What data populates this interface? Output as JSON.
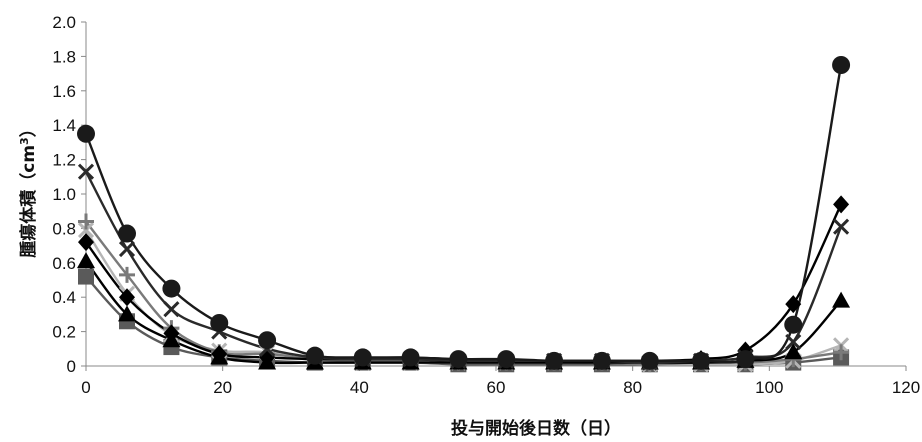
{
  "chart_data": {
    "type": "line",
    "title": "",
    "xlabel": "投与開始後日数（日）",
    "ylabel": "腫瘍体積（cm³）",
    "ylabel_parts": {
      "main": "腫瘍体積（cm",
      "sup": "3",
      "close": "）"
    },
    "xlim": [
      0,
      120
    ],
    "ylim": [
      0,
      2.0
    ],
    "x_ticks": [
      0,
      20,
      40,
      60,
      80,
      100,
      120
    ],
    "y_ticks": [
      0,
      0.2,
      0.4,
      0.6,
      0.8,
      1.0,
      1.2,
      1.4,
      1.6,
      1.8,
      2.0
    ],
    "y_tick_labels": [
      "0",
      "0.2",
      "0.4",
      "0.6",
      "0.8",
      "1.0",
      "1.2",
      "1.4",
      "1.6",
      "1.8",
      "2.0"
    ],
    "x_tick_labels": [
      "0",
      "20",
      "40",
      "60",
      "80",
      "100",
      "120"
    ],
    "grid": false,
    "legend": "none",
    "x": [
      0,
      6,
      12.5,
      19.5,
      26.5,
      33.5,
      40.5,
      47.5,
      54.5,
      61.5,
      68.5,
      75.5,
      82.5,
      90,
      96.5,
      103.5,
      110.5
    ],
    "series": [
      {
        "marker": "circle",
        "color": "#1a1a1a",
        "values": [
          1.35,
          0.77,
          0.45,
          0.25,
          0.15,
          0.06,
          0.05,
          0.05,
          0.04,
          0.04,
          0.03,
          0.03,
          0.03,
          0.03,
          0.04,
          0.24,
          1.75
        ]
      },
      {
        "marker": "x",
        "color": "#2a2a2a",
        "values": [
          1.13,
          0.68,
          0.33,
          0.2,
          0.1,
          0.05,
          0.04,
          0.04,
          0.03,
          0.03,
          0.03,
          0.03,
          0.02,
          0.03,
          0.05,
          0.14,
          0.81
        ]
      },
      {
        "marker": "plus",
        "color": "#7a7a7a",
        "values": [
          0.84,
          0.53,
          0.22,
          0.08,
          0.07,
          0.04,
          0.03,
          0.03,
          0.02,
          0.02,
          0.02,
          0.02,
          0.01,
          0.02,
          0.02,
          0.04,
          0.08
        ]
      },
      {
        "marker": "diamond",
        "color": "#000000",
        "values": [
          0.72,
          0.4,
          0.19,
          0.07,
          0.05,
          0.04,
          0.04,
          0.04,
          0.03,
          0.03,
          0.03,
          0.03,
          0.03,
          0.04,
          0.09,
          0.36,
          0.94
        ]
      },
      {
        "marker": "triangle",
        "color": "#000000",
        "values": [
          0.61,
          0.3,
          0.15,
          0.05,
          0.02,
          0.02,
          0.02,
          0.02,
          0.02,
          0.02,
          0.02,
          0.02,
          0.02,
          0.02,
          0.03,
          0.08,
          0.38
        ]
      },
      {
        "marker": "xlight",
        "color": "#b5b5b5",
        "values": [
          0.79,
          0.42,
          0.18,
          0.09,
          0.08,
          0.03,
          0.02,
          0.02,
          0.02,
          0.02,
          0.02,
          0.02,
          0.01,
          0.01,
          0.01,
          0.03,
          0.12
        ]
      },
      {
        "marker": "square",
        "color": "#5a5a5a",
        "values": [
          0.52,
          0.26,
          0.11,
          0.05,
          0.03,
          0.02,
          0.02,
          0.02,
          0.01,
          0.01,
          0.01,
          0.01,
          0.01,
          0.01,
          0.01,
          0.02,
          0.05
        ]
      }
    ]
  }
}
